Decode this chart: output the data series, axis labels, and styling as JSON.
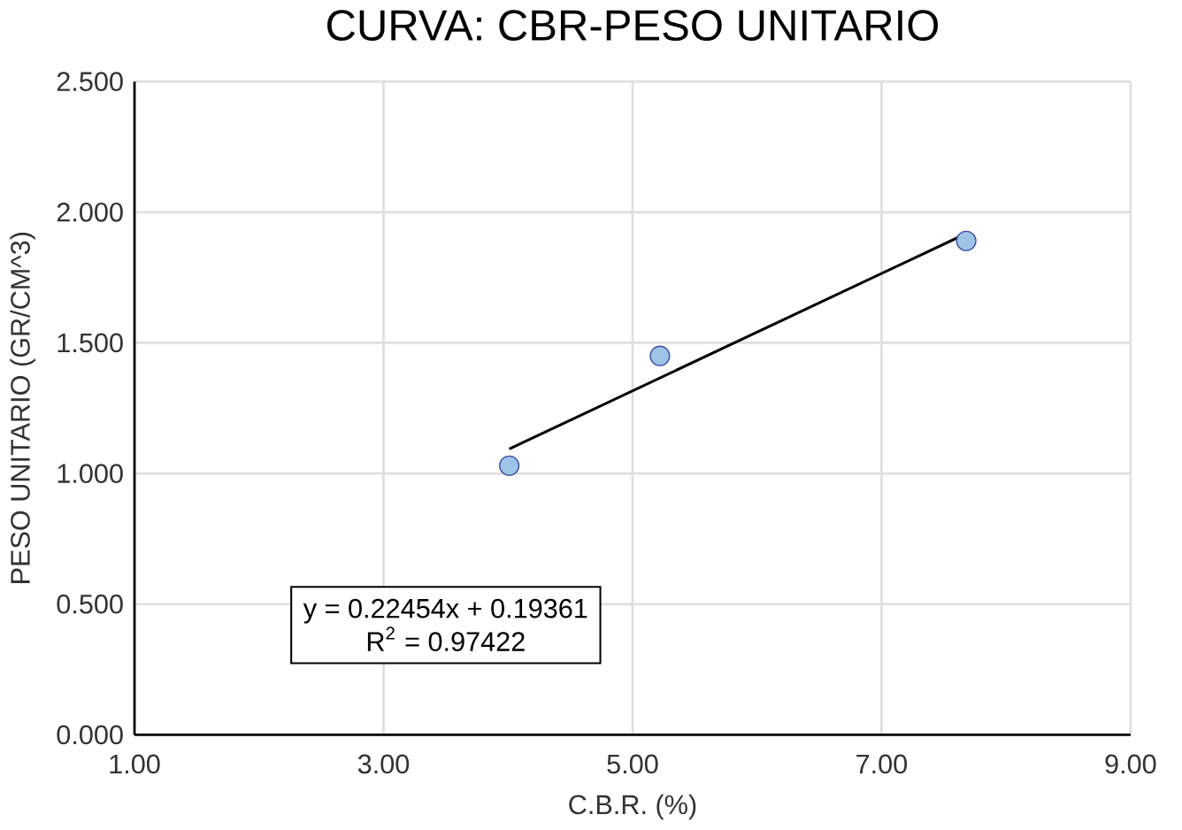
{
  "chart_data": {
    "type": "scatter",
    "title": "CURVA: CBR-PESO UNITARIO",
    "xlabel": "C.B.R. (%)",
    "ylabel": "PESO UNITARIO (GR/CM^3)",
    "series": [
      {
        "color": "#9dc3e6",
        "marker": "circle",
        "x": [
          4.01,
          5.22,
          7.68
        ],
        "values": [
          1.03,
          1.45,
          1.89
        ]
      },
      {
        "type": "line",
        "color": "#000000",
        "marker": "none",
        "line_style": "solid",
        "x": [
          4.01,
          7.68
        ],
        "values": [
          1.094,
          1.918
        ]
      }
    ],
    "xlim": [
      1,
      9
    ],
    "xticks": [
      {
        "value": 1,
        "label": "1.00"
      },
      {
        "value": 3,
        "label": "3.00"
      },
      {
        "value": 5,
        "label": "5.00"
      },
      {
        "value": 7,
        "label": "7.00"
      },
      {
        "value": 9,
        "label": "9.00"
      }
    ],
    "ylim": [
      0,
      2.5
    ],
    "yticks": [
      {
        "value": 0,
        "label": "0.000"
      },
      {
        "value": 0.5,
        "label": "0.500"
      },
      {
        "value": 1,
        "label": "1.000"
      },
      {
        "value": 1.5,
        "label": "1.500"
      },
      {
        "value": 2,
        "label": "2.000"
      },
      {
        "value": 2.5,
        "label": "2.500"
      }
    ],
    "grid": true,
    "annotations": [
      "y = 0.22454x + 0.19361",
      "R$^{2}$ = 0.97422"
    ]
  }
}
